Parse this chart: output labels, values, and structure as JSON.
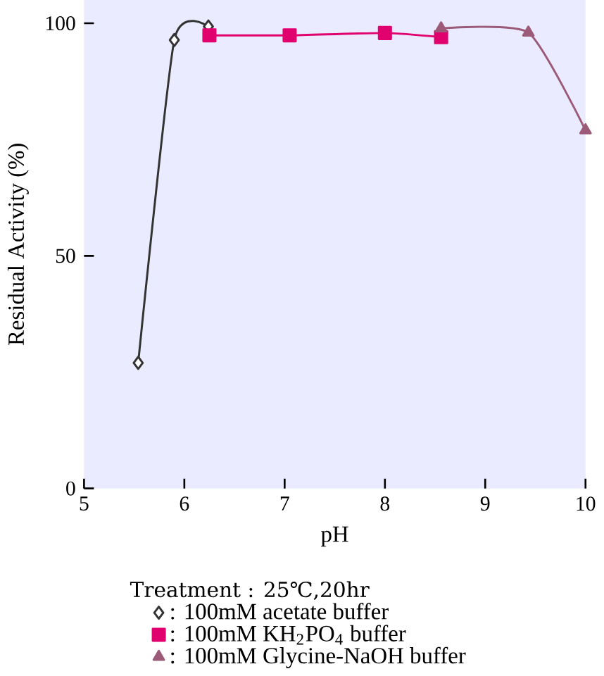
{
  "chart_data": {
    "type": "line",
    "xlabel": "pH",
    "ylabel": "Residual Activity (%)",
    "legend_title": "Treatment : 25℃,20hr",
    "legend": "bottom",
    "line_style": "solid",
    "xlim": [
      5,
      10
    ],
    "ylim": [
      0,
      105
    ],
    "xticks": [
      5,
      6,
      7,
      8,
      9,
      10
    ],
    "yticks": [
      0,
      50,
      100
    ],
    "series": [
      {
        "name": ": 100mM acetate buffer",
        "color": "#333333",
        "marker": "diamond",
        "x": [
          5.54,
          5.9,
          6.24
        ],
        "values": [
          27,
          96.4,
          99.3
        ]
      },
      {
        "name": ": 100mM KH$_{2}$PO$_{4}$ buffer",
        "color": "#e0006e",
        "marker": "square",
        "x": [
          6.25,
          7.05,
          8.0,
          8.56
        ],
        "values": [
          97.4,
          97.4,
          97.9,
          97
        ]
      },
      {
        "name": ": 100mM Glycine-NaOH buffer",
        "color": "#9b5a78",
        "marker": "triangle",
        "x": [
          8.56,
          9.43,
          10.0
        ],
        "values": [
          98.9,
          98,
          77
        ]
      }
    ]
  }
}
